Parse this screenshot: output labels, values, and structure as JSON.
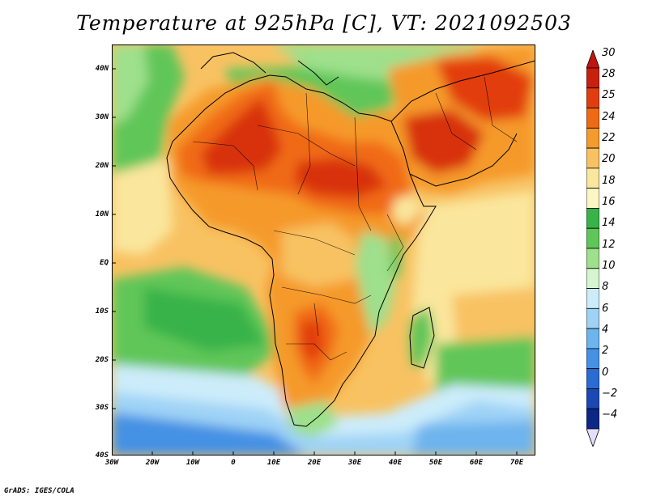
{
  "title": "Temperature at 925hPa [C], VT: 2021092503",
  "credit": "GrADS: IGES/COLA",
  "lat_labels": [
    "40N",
    "30N",
    "20N",
    "10N",
    "EQ",
    "10S",
    "20S",
    "30S",
    "40S"
  ],
  "lon_labels": [
    "30W",
    "20W",
    "10W",
    "0",
    "10E",
    "20E",
    "30E",
    "40E",
    "50E",
    "60E",
    "70E"
  ],
  "colorbar": {
    "labels": [
      "30",
      "28",
      "25",
      "24",
      "22",
      "20",
      "18",
      "16",
      "14",
      "12",
      "10",
      "8",
      "6",
      "4",
      "2",
      "0",
      "−2",
      "−4"
    ],
    "colors": [
      "#c8200f",
      "#e23d10",
      "#f06a16",
      "#f59a2c",
      "#f8c262",
      "#fae69c",
      "#fbf6c4",
      "#37b34a",
      "#61c659",
      "#9ee08c",
      "#d6f4d0",
      "#ccecfa",
      "#9fd3f6",
      "#6eb4ee",
      "#4591e4",
      "#2a6cd2",
      "#1b48b2",
      "#0c2786"
    ],
    "top_cap_color": "#c2140f",
    "bottom_cap_color": "#e4defa"
  },
  "colors": {
    "ocean_warm": "#f8c262",
    "ocean_pale": "#fae69c",
    "land_hot": "#d8300c",
    "land_warm": "#f06a16",
    "land_mild": "#f59a2c",
    "green": "#61c659",
    "dark_green": "#37b34a",
    "pale_green": "#9ee08c",
    "cool_blue": "#6eb4ee",
    "deep_blue": "#2a6cd2"
  }
}
